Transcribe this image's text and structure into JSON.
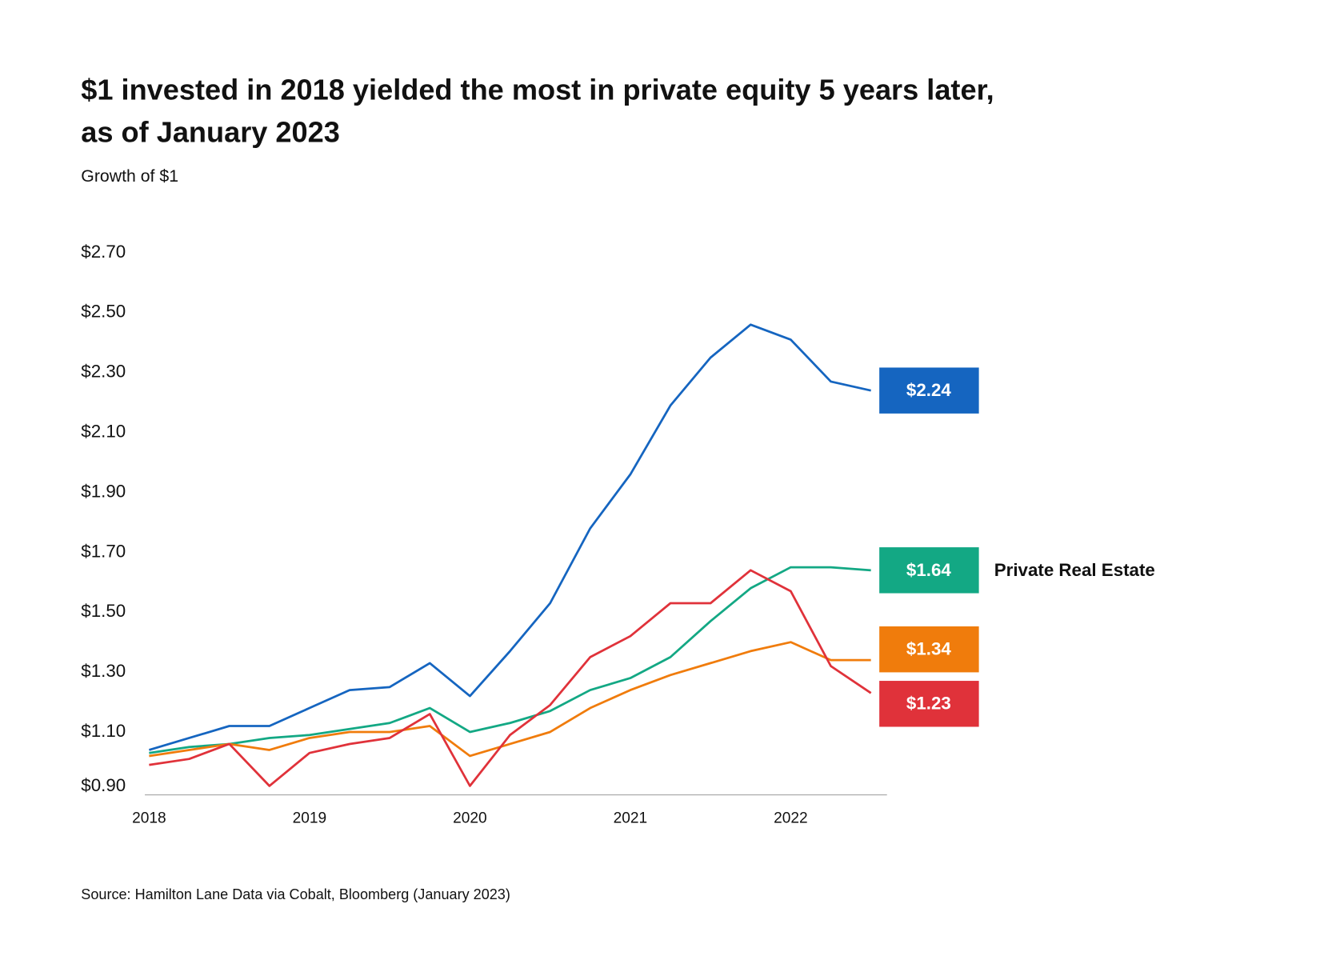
{
  "chart_data": {
    "type": "line",
    "title": [
      "$1 invested in 2018 yielded the most in private equity 5 years later,",
      "as of January 2023"
    ],
    "subtitle": "Growth of $1",
    "source": "Source: Hamilton Lane Data via Cobalt, Bloomberg (January 2023)",
    "x": [
      2018,
      2018.25,
      2018.5,
      2018.75,
      2019,
      2019.25,
      2019.5,
      2019.75,
      2020,
      2020.25,
      2020.5,
      2020.75,
      2021,
      2021.25,
      2021.5,
      2021.75,
      2022,
      2022.25,
      2022.5
    ],
    "xlim": [
      2018,
      2022.6
    ],
    "xticks": [
      2018,
      2019,
      2020,
      2021,
      2022
    ],
    "ylim": [
      0.89,
      2.7
    ],
    "yticks": [
      {
        "value": 0.9,
        "label": "$0.90"
      },
      {
        "value": 1.1,
        "label": "$1.10"
      },
      {
        "value": 1.3,
        "label": "$1.30"
      },
      {
        "value": 1.5,
        "label": "$1.50"
      },
      {
        "value": 1.7,
        "label": "$1.70"
      },
      {
        "value": 1.9,
        "label": "$1.90"
      },
      {
        "value": 2.1,
        "label": "$2.10"
      },
      {
        "value": 2.3,
        "label": "$2.30"
      },
      {
        "value": 2.5,
        "label": "$2.50"
      },
      {
        "value": 2.7,
        "label": "$2.70"
      }
    ],
    "grid": false,
    "series": [
      {
        "color": "#1565c0",
        "values": [
          1.04,
          1.08,
          1.12,
          1.12,
          1.18,
          1.24,
          1.25,
          1.33,
          1.22,
          1.37,
          1.53,
          1.78,
          1.96,
          2.19,
          2.35,
          2.46,
          2.41,
          2.27,
          2.24
        ],
        "value_labels": [
          null,
          null,
          null,
          null,
          null,
          null,
          null,
          null,
          null,
          null,
          null,
          null,
          null,
          null,
          null,
          null,
          null,
          null,
          "$2.24"
        ]
      },
      {
        "name": "Private Real Estate",
        "color": "#13a884",
        "values": [
          1.03,
          1.05,
          1.06,
          1.08,
          1.09,
          1.11,
          1.13,
          1.18,
          1.1,
          1.13,
          1.17,
          1.24,
          1.28,
          1.35,
          1.47,
          1.58,
          1.65,
          1.65,
          1.64
        ],
        "value_labels": [
          null,
          null,
          null,
          null,
          null,
          null,
          null,
          null,
          null,
          null,
          null,
          null,
          null,
          null,
          null,
          null,
          null,
          null,
          "$1.64"
        ]
      },
      {
        "color": "#f07c0c",
        "values": [
          1.02,
          1.04,
          1.06,
          1.04,
          1.08,
          1.1,
          1.1,
          1.12,
          1.02,
          1.06,
          1.1,
          1.18,
          1.24,
          1.29,
          1.33,
          1.37,
          1.4,
          1.34,
          1.34
        ],
        "value_labels": [
          null,
          null,
          null,
          null,
          null,
          null,
          null,
          null,
          null,
          null,
          null,
          null,
          null,
          null,
          null,
          null,
          null,
          null,
          "$1.34"
        ]
      },
      {
        "color": "#e0323a",
        "values": [
          0.99,
          1.01,
          1.06,
          0.92,
          1.03,
          1.06,
          1.08,
          1.16,
          0.92,
          1.09,
          1.19,
          1.35,
          1.42,
          1.53,
          1.53,
          1.64,
          1.57,
          1.32,
          1.23
        ],
        "value_labels": [
          null,
          null,
          null,
          null,
          null,
          null,
          null,
          null,
          null,
          null,
          null,
          null,
          null,
          null,
          null,
          null,
          null,
          null,
          "$1.23"
        ]
      }
    ]
  }
}
